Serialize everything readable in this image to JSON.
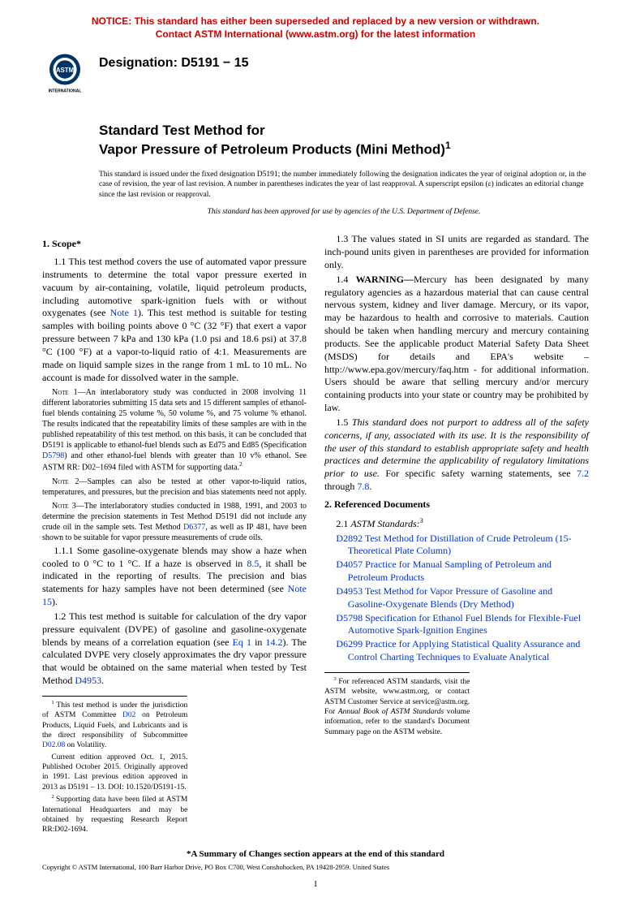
{
  "notice": {
    "line1": "NOTICE: This standard has either been superseded and replaced by a new version or withdrawn.",
    "line2": "Contact ASTM International (www.astm.org) for the latest information"
  },
  "logo": {
    "text_top": "ASTM",
    "text_bottom": "INTERNATIONAL"
  },
  "designation": "Designation: D5191 − 15",
  "title": {
    "line1": "Standard Test Method for",
    "line2": "Vapor Pressure of Petroleum Products (Mini Method)",
    "sup": "1"
  },
  "preamble": "This standard is issued under the fixed designation D5191; the number immediately following the designation indicates the year of original adoption or, in the case of revision, the year of last revision. A number in parentheses indicates the year of last reapproval. A superscript epsilon (ε) indicates an editorial change since the last revision or reapproval.",
  "preamble_italic": "This standard has been approved for use by agencies of the U.S. Department of Defense.",
  "scope": {
    "head": "1. Scope*",
    "p1_1a": "1.1 This test method covers the use of automated vapor pressure instruments to determine the total vapor pressure exerted in vacuum by air-containing, volatile, liquid petroleum products, including automotive spark-ignition fuels with or without oxygenates (see ",
    "p1_1_link": "Note 1",
    "p1_1b": "). This test method is suitable for testing samples with boiling points above 0 °C (32 °F) that exert a vapor pressure between 7 kPa and 130 kPa (1.0 psi and 18.6 psi) at 37.8 °C (100 °F) at a vapor-to-liquid ratio of 4:1. Measurements are made on liquid sample sizes in the range from 1 mL to 10 mL. No account is made for dissolved water in the sample.",
    "note1_label": "Note 1—",
    "note1a": "An interlaboratory study was conducted in 2008 involving 11 different laboratories submitting 15 data sets and 15 different samples of ethanol-fuel blends containing 25 volume %, 50 volume %, and 75 volume % ethanol. The results indicated that the repeatability limits of these samples are with in the published repeatability of this test method. on this basis, it can be concluded that D5191 is applicable to ethanol-fuel blends such as Ed75 and Ed85 (Specification ",
    "note1_link": "D5798",
    "note1b": ") and other ethanol-fuel blends with greater than 10 v% ethanol. See ASTM RR: D02–1694 filed with ASTM for supporting data.",
    "note1_sup": "2",
    "note2_label": "Note 2—",
    "note2": "Samples can also be tested at other vapor-to-liquid ratios, temperatures, and pressures, but the precision and bias statements need not apply.",
    "note3_label": "Note 3—",
    "note3a": "The interlaboratory studies conducted in 1988, 1991, and 2003 to determine the precision statements in Test Method D5191 did not include any crude oil in the sample sets. Test Method ",
    "note3_link": "D6377",
    "note3b": ", as well as IP 481, have been shown to be suitable for vapor pressure measurements of crude oils.",
    "p1_1_1a": "1.1.1 Some gasoline-oxygenate blends may show a haze when cooled to 0 °C to 1 °C. If a haze is observed in ",
    "p1_1_1_link1": "8.5",
    "p1_1_1b": ", it shall be indicated in the reporting of results. The precision and bias statements for hazy samples have not been determined (see ",
    "p1_1_1_link2": "Note 15",
    "p1_1_1c": ").",
    "p1_2a": "1.2 This test method is suitable for calculation of the dry vapor pressure equivalent (DVPE) of gasoline and gasoline-oxygenate blends by means of a correlation equation (see ",
    "p1_2_link1": "Eq 1",
    "p1_2b": " in ",
    "p1_2_link2": "14.2",
    "p1_2c": "). The calculated DVPE very closely approximates the dry vapor pressure that would be obtained on the same material when tested by Test Method ",
    "p1_2_link3": "D4953",
    "p1_2d": ".",
    "p1_3": "1.3 The values stated in SI units are regarded as standard. The inch-pound units given in parentheses are provided for information only.",
    "p1_4_label": "1.4 ",
    "p1_4_warn": "WARNING—",
    "p1_4": "Mercury has been designated by many regulatory agencies as a hazardous material that can cause central nervous system, kidney and liver damage. Mercury, or its vapor, may be hazardous to health and corrosive to materials. Caution should be taken when handling mercury and mercury containing products. See the applicable product Material Safety Data Sheet (MSDS) for details and EPA's website – http://www.epa.gov/mercury/faq.htm - for additional information. Users should be aware that selling mercury and/or mercury containing products into your state or country may be prohibited by law.",
    "p1_5a": "1.5 ",
    "p1_5_italic": "This standard does not purport to address all of the safety concerns, if any, associated with its use. It is the responsibility of the user of this standard to establish appropriate safety and health practices and determine the applicability of regulatory limitations prior to use.",
    "p1_5b": " For specific safety warning statements, see ",
    "p1_5_link1": "7.2",
    "p1_5c": " through ",
    "p1_5_link2": "7.8",
    "p1_5d": "."
  },
  "refs": {
    "head": "2. Referenced Documents",
    "sub": "2.1 ",
    "sub_italic": "ASTM Standards:",
    "sub_sup": "3",
    "items": [
      {
        "code": "D2892",
        "text": " Test Method for Distillation of Crude Petroleum (15-Theoretical Plate Column)"
      },
      {
        "code": "D4057",
        "text": " Practice for Manual Sampling of Petroleum and Petroleum Products"
      },
      {
        "code": "D4953",
        "text": " Test Method for Vapor Pressure of Gasoline and Gasoline-Oxygenate Blends (Dry Method)"
      },
      {
        "code": "D5798",
        "text": " Specification for Ethanol Fuel Blends for Flexible-Fuel Automotive Spark-Ignition Engines"
      },
      {
        "code": "D6299",
        "text": " Practice for Applying Statistical Quality Assurance and Control Charting Techniques to Evaluate Analytical"
      }
    ]
  },
  "footnotes_left": {
    "f1a": "This test method is under the jurisdiction of ASTM Committee ",
    "f1_link1": "D02",
    "f1b": " on Petroleum Products, Liquid Fuels, and Lubricants and is the direct responsibility of Subcommittee ",
    "f1_link2": "D02.08",
    "f1c": " on Volatility.",
    "f1d": "Current edition approved Oct. 1, 2015. Published October 2015. Originally approved in 1991. Last previous edition approved in 2013 as D5191 – 13. DOI: 10.1520/D5191-15.",
    "f2": "Supporting data have been filed at ASTM International Headquarters and may be obtained by requesting Research Report RR:D02-1694."
  },
  "footnotes_right": {
    "f3a": "For referenced ASTM standards, visit the ASTM website, www.astm.org, or contact ASTM Customer Service at service@astm.org. For ",
    "f3_italic": "Annual Book of ASTM Standards",
    "f3b": " volume information, refer to the standard's Document Summary page on the ASTM website."
  },
  "footer_note": "*A Summary of Changes section appears at the end of this standard",
  "copyright": "Copyright © ASTM International, 100 Barr Harbor Drive, PO Box C700, West Conshohocken, PA 19428-2959. United States",
  "page_num": "1"
}
